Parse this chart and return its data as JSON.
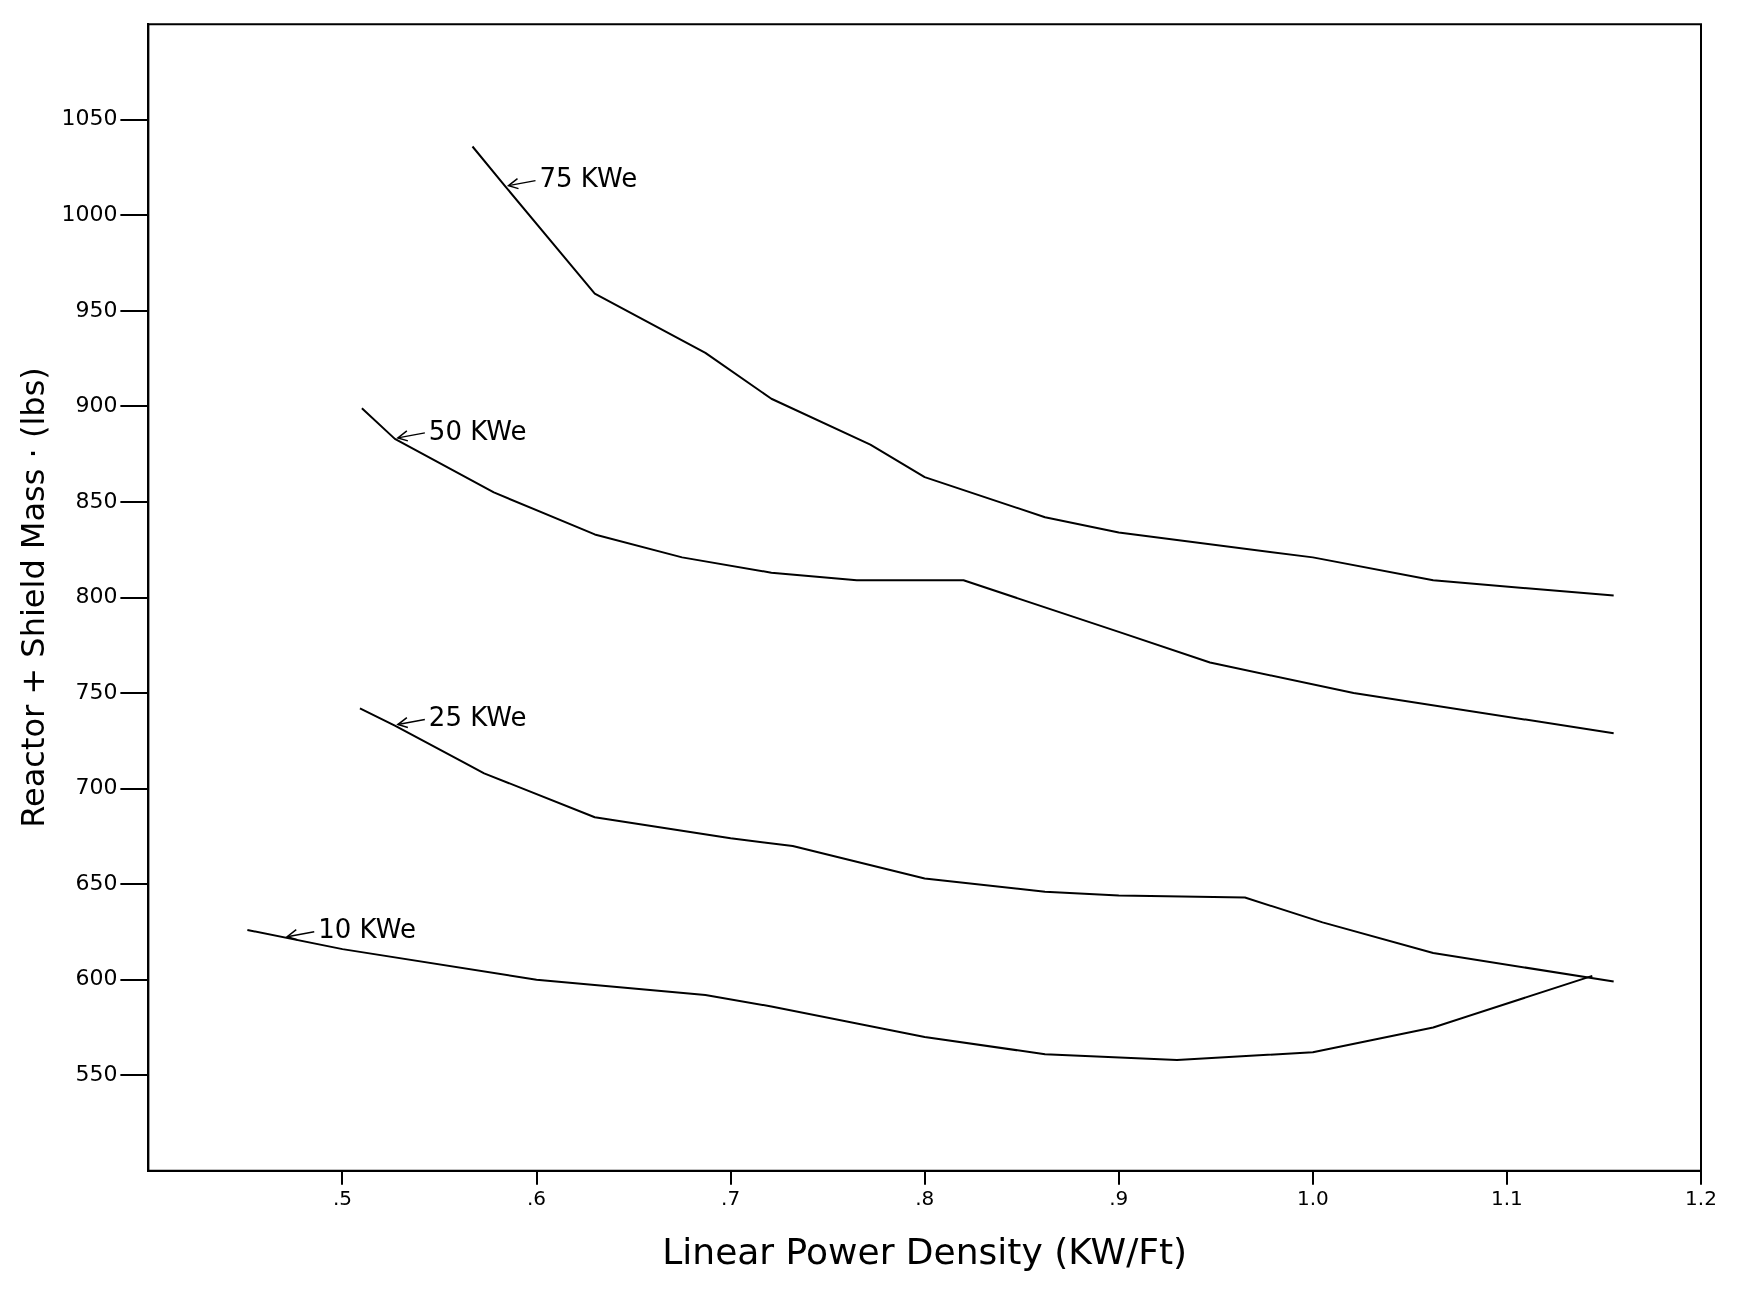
{
  "chart_data": {
    "type": "line",
    "xlabel": "Linear Power Density (KW/Ft)",
    "ylabel": "Reactor + Shield Mass · (lbs)",
    "xlim": [
      0.4,
      1.2
    ],
    "xticks": [
      {
        "value": 0.5,
        "label": ".5"
      },
      {
        "value": 0.6,
        "label": ".6"
      },
      {
        "value": 0.7,
        "label": ".7"
      },
      {
        "value": 0.8,
        "label": ".8"
      },
      {
        "value": 0.9,
        "label": ".9"
      },
      {
        "value": 1.0,
        "label": "1.0"
      },
      {
        "value": 1.1,
        "label": "1.1"
      },
      {
        "value": 1.2,
        "label": "1.2"
      }
    ],
    "ylim": [
      500,
      1100
    ],
    "yticks": [
      550,
      600,
      650,
      700,
      750,
      800,
      850,
      900,
      950,
      1000,
      1050
    ],
    "annotations": [
      {
        "text": "75 KWe",
        "x": 0.584,
        "y": 1015
      },
      {
        "text": "50 KWe",
        "x": 0.527,
        "y": 883
      },
      {
        "text": "25 KWe",
        "x": 0.527,
        "y": 733
      },
      {
        "text": "10 KWe",
        "x": 0.47,
        "y": 622
      }
    ],
    "grid": false,
    "legend": false,
    "marker": "none",
    "line_style": "solid",
    "series": [
      {
        "color": "#000000",
        "x": [
          0.567,
          0.584,
          0.63,
          0.687,
          0.721,
          0.772,
          0.8,
          0.862,
          0.9,
          1.0,
          1.062,
          1.155
        ],
        "values": [
          1036,
          1015,
          959,
          928,
          904,
          880,
          863,
          842,
          834,
          821,
          809,
          801
        ]
      },
      {
        "color": "#000000",
        "x": [
          0.51,
          0.527,
          0.578,
          0.63,
          0.675,
          0.721,
          0.765,
          0.82,
          0.9,
          0.947,
          1.021,
          1.155
        ],
        "values": [
          899,
          883,
          855,
          833,
          821,
          813,
          809,
          809,
          782,
          766,
          750,
          729
        ]
      },
      {
        "color": "#000000",
        "x": [
          0.509,
          0.527,
          0.573,
          0.63,
          0.7,
          0.732,
          0.8,
          0.862,
          0.9,
          0.965,
          1.005,
          1.062,
          1.155
        ],
        "values": [
          742,
          733,
          708,
          685,
          674,
          670,
          653,
          646,
          644,
          643,
          630,
          614,
          599
        ]
      },
      {
        "color": "#000000",
        "x": [
          0.451,
          0.5,
          0.6,
          0.687,
          0.721,
          0.8,
          0.862,
          0.93,
          1.0,
          1.062,
          1.144
        ],
        "values": [
          626,
          616,
          600,
          592,
          586,
          570,
          561,
          558,
          562,
          575,
          602
        ]
      }
    ]
  }
}
